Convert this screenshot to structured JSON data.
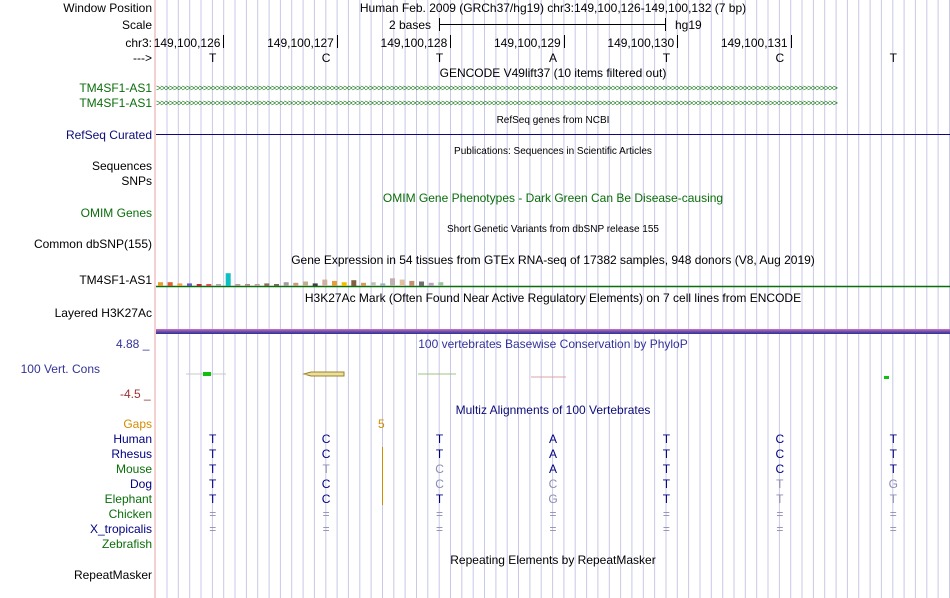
{
  "position": {
    "label": "Window Position",
    "text": "Human Feb. 2009 (GRCh37/hg19)   chr3:149,100,126-149,100,132 (7 bp)"
  },
  "scale": {
    "label": "Scale",
    "bases": "2 bases",
    "assembly": "hg19"
  },
  "ruler": {
    "label": "chr3:",
    "ticks": [
      "149,100,126",
      "149,100,127",
      "149,100,128",
      "149,100,129",
      "149,100,130",
      "149,100,131"
    ]
  },
  "strand": {
    "label": "--->",
    "bases": [
      "T",
      "C",
      "T",
      "A",
      "T",
      "C",
      "T"
    ]
  },
  "gencode": {
    "title": "GENCODE V49lift37 (10 items filtered out)",
    "items": [
      "TM4SF1-AS1",
      "TM4SF1-AS1"
    ]
  },
  "refseq": {
    "title": "RefSeq genes from NCBI",
    "label": "RefSeq Curated"
  },
  "publications": {
    "title": "Publications: Sequences in Scientific Articles",
    "labels": [
      "Sequences",
      "SNPs"
    ]
  },
  "omim": {
    "title": "OMIM Gene Phenotypes - Dark Green Can Be Disease-causing",
    "label": "OMIM Genes"
  },
  "dbsnp": {
    "title": "Short Genetic Variants from dbSNP release 155",
    "label": "Common dbSNP(155)"
  },
  "gtex": {
    "title": "Gene Expression in 54 tissues from GTEx RNA-seq of 17382 samples, 948 donors (V8, Aug 2019)",
    "label": "TM4SF1-AS1",
    "bar_values": [
      0.3,
      0.3,
      0.2,
      0.2,
      0.1,
      0.15,
      0.1,
      1.0,
      0.15,
      0.12,
      0.1,
      0.2,
      0.15,
      0.3,
      0.25,
      0.35,
      0.2,
      0.5,
      0.4,
      0.3,
      0.45,
      0.25,
      0.3,
      0.2,
      0.6,
      0.5,
      0.4,
      0.35,
      0.25,
      0.3
    ],
    "bar_colors": [
      "#e0a030",
      "#e06030",
      "#f0a040",
      "#6060c0",
      "#c03030",
      "#e05050",
      "#aaaaaa",
      "#10c0c0",
      "#b0a090",
      "#b09080",
      "#c0a0a0",
      "#887050",
      "#707050",
      "#a0a0a0",
      "#c0a080",
      "#c0b090",
      "#404040",
      "#d0b0a0",
      "#e0a040",
      "#f0c000",
      "#806040",
      "#d0a060",
      "#c0c0c0",
      "#a0b0c0",
      "#c0b0b0",
      "#e0c0a0",
      "#c09070",
      "#707070",
      "#c0a0c0",
      "#a0c0a0"
    ]
  },
  "h3k27ac": {
    "title": "H3K27Ac Mark (Often Found Near Active Regulatory Elements) on 7 cell lines from ENCODE",
    "label": "Layered H3K27Ac"
  },
  "conservation": {
    "title": "100 vertebrates Basewise Conservation by PhyloP",
    "label": "100 Vert. Cons",
    "max_label": "4.88 _",
    "min_label": "-4.5 _",
    "max_color": "#333399",
    "min_color": "#993333"
  },
  "multiz": {
    "title": "Multiz Alignments of 100 Vertebrates",
    "gaps_label": "Gaps",
    "gap_count": "5",
    "species": [
      {
        "name": "Human",
        "color": "#000080",
        "bases": [
          "T",
          "C",
          "T",
          "A",
          "T",
          "C",
          "T"
        ],
        "dim": [
          false,
          false,
          false,
          false,
          false,
          false,
          false
        ]
      },
      {
        "name": "Rhesus",
        "color": "#000080",
        "bases": [
          "T",
          "C",
          "T",
          "A",
          "T",
          "C",
          "T"
        ],
        "dim": [
          false,
          false,
          false,
          false,
          false,
          false,
          false
        ]
      },
      {
        "name": "Mouse",
        "color": "#0a6e0a",
        "bases": [
          "T",
          "T",
          "C",
          "A",
          "T",
          "C",
          "T"
        ],
        "dim": [
          false,
          true,
          true,
          false,
          false,
          false,
          false
        ]
      },
      {
        "name": "Dog",
        "color": "#000080",
        "bases": [
          "T",
          "C",
          "C",
          "C",
          "T",
          "T",
          "G"
        ],
        "dim": [
          false,
          false,
          true,
          true,
          false,
          true,
          true
        ]
      },
      {
        "name": "Elephant",
        "color": "#0a6e0a",
        "bases": [
          "T",
          "C",
          "T",
          "G",
          "T",
          "T",
          "T"
        ],
        "dim": [
          false,
          false,
          false,
          true,
          false,
          true,
          true
        ]
      },
      {
        "name": "Chicken",
        "color": "#0a6e0a",
        "bases": [
          "=",
          "=",
          "=",
          "=",
          "=",
          "=",
          "="
        ],
        "dim": [
          true,
          true,
          true,
          true,
          true,
          true,
          true
        ]
      },
      {
        "name": "X_tropicalis",
        "color": "#000080",
        "bases": [
          "=",
          "=",
          "=",
          "=",
          "=",
          "=",
          "="
        ],
        "dim": [
          true,
          true,
          true,
          true,
          true,
          true,
          true
        ]
      },
      {
        "name": "Zebrafish",
        "color": "#0a6e0a",
        "bases": [],
        "dim": []
      }
    ]
  },
  "repeatmasker": {
    "title": "Repeating Elements by RepeatMasker",
    "label": "RepeatMasker"
  },
  "colors": {
    "gencode": "#0a6e0a",
    "refseq": "#0c0c78",
    "omim": "#0a6e0a",
    "gaps": "#d28c00",
    "grid": "#c8c8e8",
    "ruler_tick": "#000000"
  }
}
